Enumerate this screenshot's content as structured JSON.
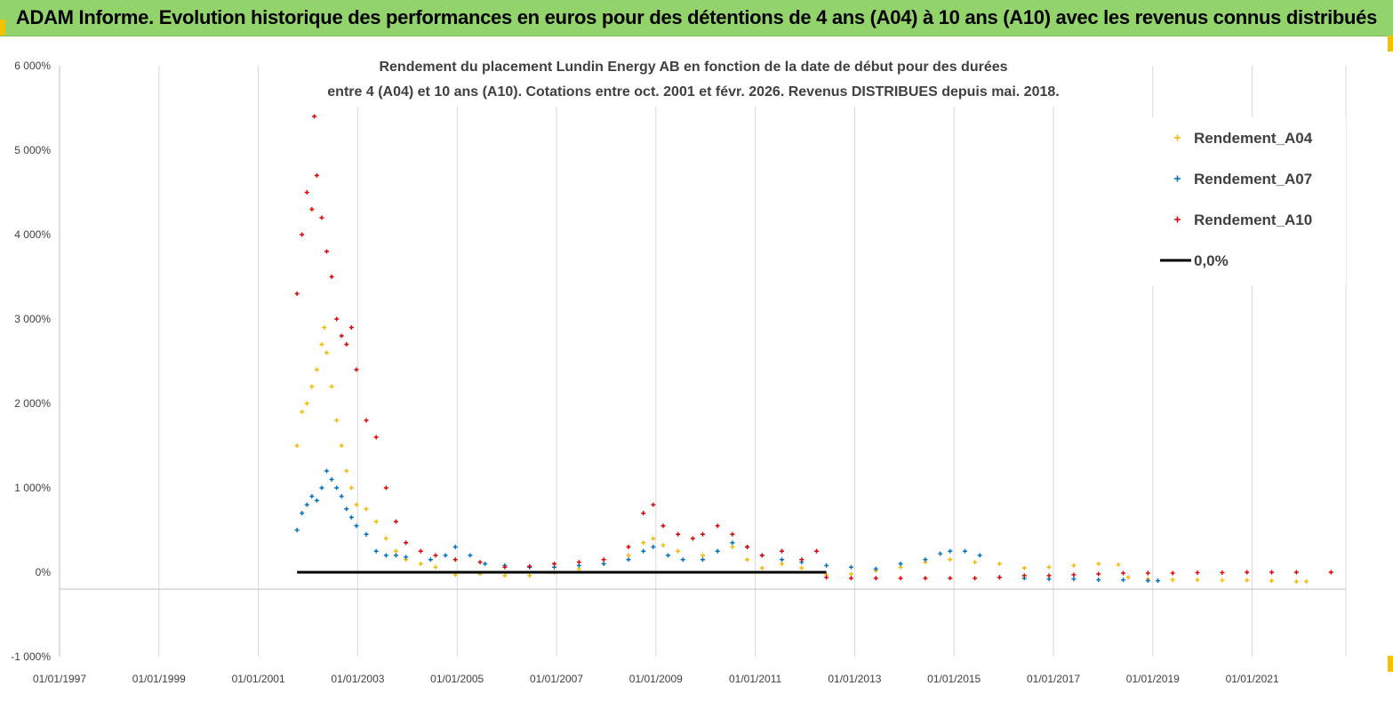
{
  "banner": {
    "title": "ADAM Informe. Evolution historique des performances en euros pour des détentions de 4 ans (A04) à 10 ans (A10) avec les revenus connus distribués",
    "background": "#93d36b"
  },
  "chart_data": {
    "type": "scatter",
    "title_line1": "Rendement du placement Lundin Energy AB en fonction de la date de début pour des durées",
    "title_line2": "entre 4 (A04) et 10 ans (A10).  Cotations entre oct. 2001 et févr. 2026. Revenus DISTRIBUES depuis mai. 2018.",
    "y_ticks": [
      "6 000%",
      "5 000%",
      "4 000%",
      "3 000%",
      "2 000%",
      "1 000%",
      "0%",
      "-1 000%"
    ],
    "y_tick_values": [
      6000,
      5000,
      4000,
      3000,
      2000,
      1000,
      0,
      -1000
    ],
    "x_ticks": [
      "01/01/1997",
      "01/01/1999",
      "01/01/2001",
      "01/01/2003",
      "01/01/2005",
      "01/01/2007",
      "01/01/2009",
      "01/01/2011",
      "01/01/2013",
      "01/01/2015",
      "01/01/2017",
      "01/01/2019",
      "01/01/2021"
    ],
    "ylim": [
      -1000,
      6000
    ],
    "xlim": [
      1997.0,
      2023.0
    ],
    "grid": "vertical",
    "legend_position": "top-right",
    "series": [
      {
        "name": "Rendement_A04",
        "color": "#f5b800",
        "points": [
          [
            2001.8,
            1500
          ],
          [
            2001.9,
            1900
          ],
          [
            2002.0,
            2000
          ],
          [
            2002.1,
            2200
          ],
          [
            2002.2,
            2400
          ],
          [
            2002.3,
            2700
          ],
          [
            2002.35,
            2900
          ],
          [
            2002.4,
            2600
          ],
          [
            2002.5,
            2200
          ],
          [
            2002.6,
            1800
          ],
          [
            2002.7,
            1500
          ],
          [
            2002.8,
            1200
          ],
          [
            2002.9,
            1000
          ],
          [
            2003.0,
            800
          ],
          [
            2003.2,
            750
          ],
          [
            2003.4,
            600
          ],
          [
            2003.6,
            400
          ],
          [
            2003.8,
            250
          ],
          [
            2004.0,
            150
          ],
          [
            2004.3,
            100
          ],
          [
            2004.6,
            60
          ],
          [
            2005.0,
            -30
          ],
          [
            2005.5,
            -20
          ],
          [
            2006.0,
            -40
          ],
          [
            2006.5,
            -40
          ],
          [
            2007.0,
            0
          ],
          [
            2007.5,
            40
          ],
          [
            2008.0,
            100
          ],
          [
            2008.5,
            200
          ],
          [
            2008.8,
            350
          ],
          [
            2009.0,
            400
          ],
          [
            2009.2,
            320
          ],
          [
            2009.5,
            250
          ],
          [
            2010.0,
            200
          ],
          [
            2010.3,
            250
          ],
          [
            2010.6,
            300
          ],
          [
            2010.9,
            150
          ],
          [
            2011.2,
            50
          ],
          [
            2011.6,
            100
          ],
          [
            2012.0,
            50
          ],
          [
            2012.5,
            -30
          ],
          [
            2013.0,
            -20
          ],
          [
            2013.5,
            20
          ],
          [
            2014.0,
            60
          ],
          [
            2014.5,
            120
          ],
          [
            2015.0,
            150
          ],
          [
            2015.5,
            120
          ],
          [
            2016.0,
            100
          ],
          [
            2016.5,
            50
          ],
          [
            2017.0,
            60
          ],
          [
            2017.5,
            80
          ],
          [
            2018.0,
            100
          ],
          [
            2018.4,
            90
          ],
          [
            2018.6,
            -60
          ],
          [
            2019.0,
            -80
          ],
          [
            2019.5,
            -90
          ],
          [
            2020.0,
            -90
          ],
          [
            2020.5,
            -95
          ],
          [
            2021.0,
            -95
          ],
          [
            2021.5,
            -100
          ],
          [
            2022.0,
            -110
          ],
          [
            2022.2,
            -110
          ]
        ]
      },
      {
        "name": "Rendement_A07",
        "color": "#0070c0",
        "points": [
          [
            2001.8,
            500
          ],
          [
            2001.9,
            700
          ],
          [
            2002.0,
            800
          ],
          [
            2002.1,
            900
          ],
          [
            2002.2,
            850
          ],
          [
            2002.3,
            1000
          ],
          [
            2002.4,
            1200
          ],
          [
            2002.5,
            1100
          ],
          [
            2002.6,
            1000
          ],
          [
            2002.7,
            900
          ],
          [
            2002.8,
            750
          ],
          [
            2002.9,
            650
          ],
          [
            2003.0,
            550
          ],
          [
            2003.2,
            450
          ],
          [
            2003.4,
            250
          ],
          [
            2003.6,
            200
          ],
          [
            2003.8,
            200
          ],
          [
            2004.0,
            180
          ],
          [
            2004.5,
            150
          ],
          [
            2004.8,
            200
          ],
          [
            2005.0,
            300
          ],
          [
            2005.3,
            200
          ],
          [
            2005.6,
            100
          ],
          [
            2006.0,
            80
          ],
          [
            2006.5,
            60
          ],
          [
            2007.0,
            60
          ],
          [
            2007.5,
            80
          ],
          [
            2008.0,
            100
          ],
          [
            2008.5,
            150
          ],
          [
            2008.8,
            250
          ],
          [
            2009.0,
            300
          ],
          [
            2009.3,
            200
          ],
          [
            2009.6,
            150
          ],
          [
            2010.0,
            150
          ],
          [
            2010.3,
            250
          ],
          [
            2010.6,
            350
          ],
          [
            2010.9,
            300
          ],
          [
            2011.2,
            200
          ],
          [
            2011.6,
            150
          ],
          [
            2012.0,
            120
          ],
          [
            2012.5,
            80
          ],
          [
            2013.0,
            60
          ],
          [
            2013.5,
            40
          ],
          [
            2014.0,
            100
          ],
          [
            2014.5,
            150
          ],
          [
            2014.8,
            220
          ],
          [
            2015.0,
            250
          ],
          [
            2015.3,
            250
          ],
          [
            2015.6,
            200
          ],
          [
            2016.0,
            -60
          ],
          [
            2016.5,
            -70
          ],
          [
            2017.0,
            -80
          ],
          [
            2017.5,
            -80
          ],
          [
            2018.0,
            -90
          ],
          [
            2018.5,
            -90
          ],
          [
            2019.0,
            -100
          ],
          [
            2019.2,
            -100
          ]
        ]
      },
      {
        "name": "Rendement_A10",
        "color": "#e00000",
        "points": [
          [
            2001.8,
            3300
          ],
          [
            2001.9,
            4000
          ],
          [
            2002.0,
            4500
          ],
          [
            2002.1,
            4300
          ],
          [
            2002.15,
            5400
          ],
          [
            2002.2,
            4700
          ],
          [
            2002.3,
            4200
          ],
          [
            2002.4,
            3800
          ],
          [
            2002.5,
            3500
          ],
          [
            2002.6,
            3000
          ],
          [
            2002.7,
            2800
          ],
          [
            2002.8,
            2700
          ],
          [
            2002.9,
            2900
          ],
          [
            2003.0,
            2400
          ],
          [
            2003.2,
            1800
          ],
          [
            2003.4,
            1600
          ],
          [
            2003.6,
            1000
          ],
          [
            2003.8,
            600
          ],
          [
            2004.0,
            350
          ],
          [
            2004.3,
            250
          ],
          [
            2004.6,
            200
          ],
          [
            2005.0,
            150
          ],
          [
            2005.5,
            120
          ],
          [
            2006.0,
            60
          ],
          [
            2006.5,
            70
          ],
          [
            2007.0,
            100
          ],
          [
            2007.5,
            120
          ],
          [
            2008.0,
            150
          ],
          [
            2008.5,
            300
          ],
          [
            2008.8,
            700
          ],
          [
            2009.0,
            800
          ],
          [
            2009.2,
            550
          ],
          [
            2009.5,
            450
          ],
          [
            2009.8,
            400
          ],
          [
            2010.0,
            450
          ],
          [
            2010.3,
            550
          ],
          [
            2010.6,
            450
          ],
          [
            2010.9,
            300
          ],
          [
            2011.2,
            200
          ],
          [
            2011.6,
            250
          ],
          [
            2012.0,
            150
          ],
          [
            2012.3,
            250
          ],
          [
            2012.5,
            -60
          ],
          [
            2013.0,
            -70
          ],
          [
            2013.5,
            -70
          ],
          [
            2014.0,
            -70
          ],
          [
            2014.5,
            -70
          ],
          [
            2015.0,
            -70
          ],
          [
            2015.5,
            -70
          ],
          [
            2016.0,
            -60
          ],
          [
            2016.5,
            -40
          ],
          [
            2017.0,
            -40
          ],
          [
            2017.5,
            -30
          ],
          [
            2018.0,
            -20
          ],
          [
            2018.5,
            -10
          ],
          [
            2019.0,
            -10
          ],
          [
            2019.5,
            -10
          ],
          [
            2020.0,
            -5
          ],
          [
            2020.5,
            -5
          ],
          [
            2021.0,
            0
          ],
          [
            2021.5,
            0
          ],
          [
            2022.0,
            0
          ],
          [
            2022.7,
            0
          ]
        ]
      },
      {
        "name": "0,0%",
        "color": "#000000",
        "kind": "line",
        "points": [
          [
            2001.8,
            0
          ],
          [
            2012.5,
            0
          ]
        ]
      }
    ]
  }
}
